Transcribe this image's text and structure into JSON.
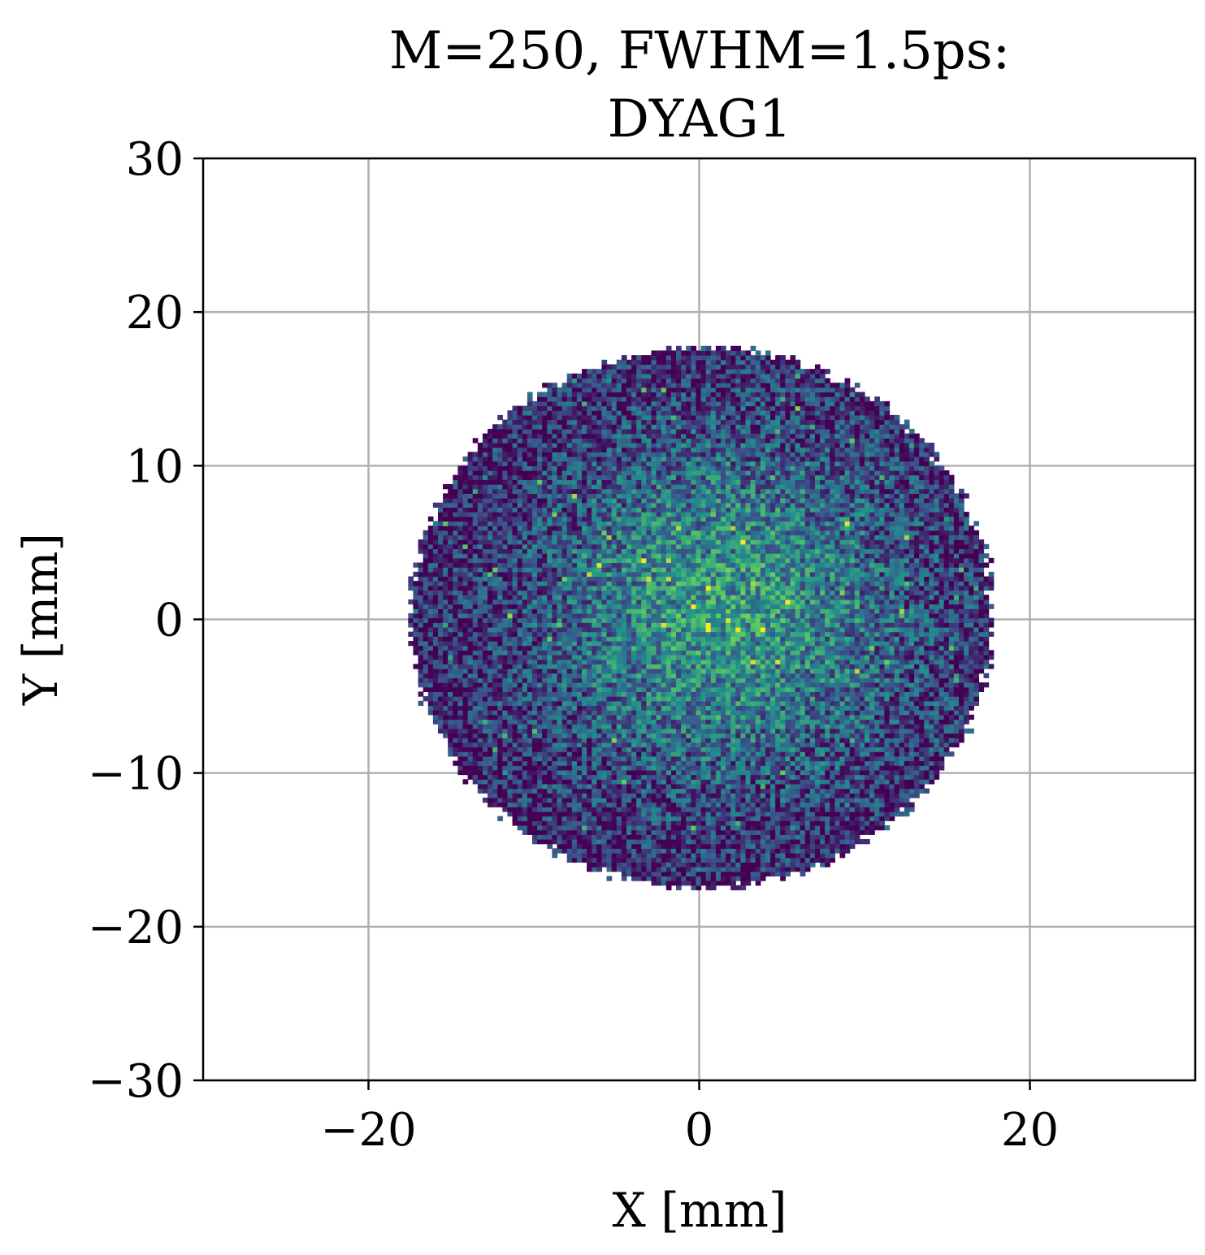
{
  "chart_data": {
    "type": "heatmap",
    "title_lines": [
      "M=250, FWHM=1.5ps:",
      "DYAG1"
    ],
    "xlabel": "X [mm]",
    "ylabel": "Y [mm]",
    "xlim": [
      -30,
      30
    ],
    "ylim": [
      -30,
      30
    ],
    "xticks": [
      -20,
      0,
      20
    ],
    "xtick_labels": [
      "−20",
      "0",
      "20"
    ],
    "yticks": [
      -30,
      -20,
      -10,
      0,
      10,
      20,
      30
    ],
    "ytick_labels": [
      "−30",
      "−20",
      "−10",
      "0",
      "10",
      "20",
      "30"
    ],
    "grid": true,
    "colormap": [
      "#440154",
      "#3b528b",
      "#21918c",
      "#5ec962",
      "#fde725"
    ],
    "distribution": {
      "shape": "disk",
      "center_x": 0,
      "center_y": 0,
      "radius": 17.6,
      "peak_x": 1.5,
      "peak_y": 0.5,
      "bin_size": 0.3
    }
  }
}
